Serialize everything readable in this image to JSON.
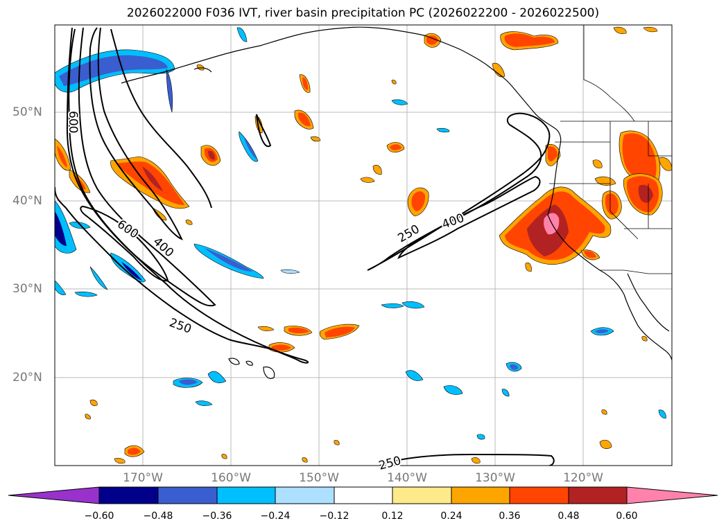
{
  "title": "2026022000 F036 IVT, river basin precipitation PC (2026022200 - 2026022500)",
  "lat_labels": [
    "50°N",
    "40°N",
    "30°N",
    "20°N"
  ],
  "lon_labels": [
    "170°W",
    "160°W",
    "150°W",
    "140°W",
    "130°W",
    "120°W"
  ],
  "contour_labels": {
    "c600a": "600",
    "c600b": "600",
    "c400a": "400",
    "c250a": "250",
    "c250b": "250",
    "c400b": "400",
    "c250c": "250"
  },
  "colorbar": {
    "ticks": [
      "−0.60",
      "−0.48",
      "−0.36",
      "−0.24",
      "−0.12",
      "0.12",
      "0.24",
      "0.36",
      "0.48",
      "0.60"
    ],
    "colors": [
      "#9932CC",
      "#00008B",
      "#3A5ECF",
      "#00BFFF",
      "#ADDFFF",
      "#FFFFFF",
      "#FFEA8A",
      "#FFA500",
      "#FF4500",
      "#B22222",
      "#FF82AB"
    ]
  },
  "chart_data": {
    "type": "contour-map",
    "title": "2026022000 F036 IVT, river basin precipitation PC (2026022200 - 2026022500)",
    "lat_ticks": [
      50,
      40,
      30,
      20
    ],
    "lon_ticks": [
      -170,
      -160,
      -150,
      -140,
      -130,
      -120
    ],
    "ivt_contour_levels": [
      250,
      400,
      600
    ],
    "colorbar_levels": [
      -0.6,
      -0.48,
      -0.36,
      -0.24,
      -0.12,
      0.12,
      0.24,
      0.36,
      0.48,
      0.6
    ],
    "colorbar_extend": "both",
    "grid": true
  }
}
